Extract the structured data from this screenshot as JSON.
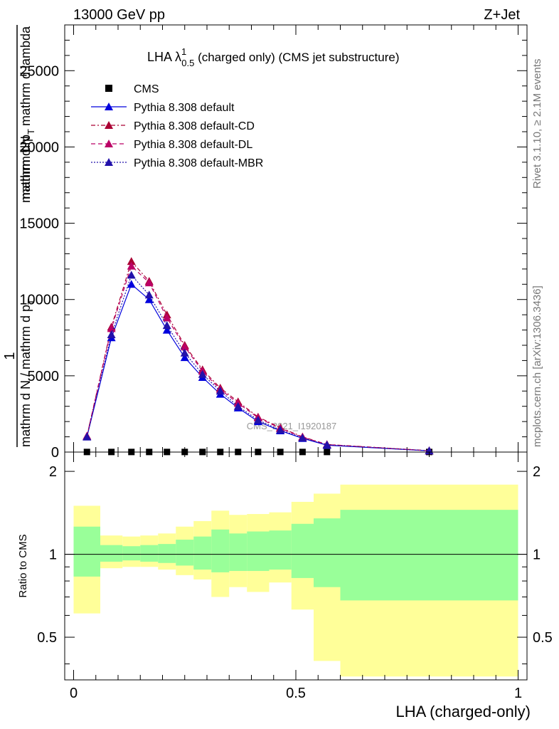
{
  "header": {
    "energy_label": "13000 GeV pp",
    "process_label": "Z+Jet"
  },
  "side_labels": {
    "rivet": "Rivet 3.1.10, ≥ 2.1M events",
    "mcplots": "mcplots.cern.ch [arXiv:1306.3436]"
  },
  "watermark": "CMS_2021_I1920187",
  "main_panel": {
    "title_lead": "LHA λ",
    "title_sup": "1",
    "title_sub": "0.5",
    "title_tail": " (charged only) (CMS jet substructure)",
    "ylabel_parts": [
      "1",
      "mathrm d N / mathrm d p",
      "T",
      "mathrm d N",
      "mathrm d p",
      "T",
      "mathrm d lambda"
    ],
    "y_tick_labels": [
      "0",
      "5000",
      "10000",
      "15000",
      "20000",
      "25000"
    ]
  },
  "ratio_panel": {
    "ylabel": "Ratio to CMS",
    "y_tick_labels": [
      "0.5",
      "1",
      "2"
    ],
    "x_tick_labels": [
      "0",
      "0.5",
      "1"
    ],
    "xlabel": "LHA (charged-only)"
  },
  "colors": {
    "cms": "#000000",
    "default": "#0000dd",
    "cd": "#aa0033",
    "dl": "#bb0066",
    "mbr": "#2211aa",
    "band_inner": "#99ff99",
    "band_outer": "#ffff99"
  },
  "chart_data": [
    {
      "type": "line",
      "panel": "main",
      "title": "LHA λ^1_0.5 (charged only) (CMS jet substructure)",
      "xlabel": "LHA (charged-only)",
      "ylabel": "1/(mathrm d N / mathrm d p_T) mathrm d^2N/(mathrm d p_T mathrm d lambda)",
      "xlim": [
        -0.02,
        1.02
      ],
      "ylim": [
        0,
        28000
      ],
      "legend_position": "top-left",
      "x": [
        0.03,
        0.085,
        0.13,
        0.17,
        0.21,
        0.25,
        0.29,
        0.33,
        0.37,
        0.415,
        0.465,
        0.515,
        0.57,
        0.8
      ],
      "series": [
        {
          "name": "CMS",
          "marker": "square",
          "values": [
            6,
            6,
            6,
            6,
            6,
            6,
            6,
            6,
            6,
            6,
            6,
            6,
            6,
            6
          ]
        },
        {
          "name": "Pythia 8.308 default",
          "marker": "triangle",
          "line": "solid",
          "values": [
            1000,
            7500,
            11000,
            10000,
            8000,
            6200,
            4900,
            3800,
            2900,
            2000,
            1400,
            900,
            450,
            80
          ]
        },
        {
          "name": "Pythia 8.308 default-CD",
          "marker": "triangle",
          "line": "dashdot",
          "values": [
            1050,
            8200,
            12500,
            11200,
            9000,
            7000,
            5400,
            4200,
            3300,
            2300,
            1600,
            1000,
            500,
            90
          ]
        },
        {
          "name": "Pythia 8.308 default-DL",
          "marker": "triangle",
          "line": "dashed",
          "values": [
            1050,
            8100,
            12200,
            11100,
            8800,
            6900,
            5300,
            4100,
            3200,
            2250,
            1550,
            980,
            490,
            88
          ]
        },
        {
          "name": "Pythia 8.308 default-MBR",
          "marker": "triangle",
          "line": "dotted",
          "values": [
            1000,
            7700,
            11600,
            10300,
            8300,
            6500,
            5100,
            4000,
            3000,
            2100,
            1450,
            930,
            470,
            85
          ]
        }
      ]
    },
    {
      "type": "area",
      "panel": "ratio",
      "ylabel": "Ratio to CMS",
      "xlabel": "LHA (charged-only)",
      "xlim": [
        -0.02,
        1.02
      ],
      "ylim": [
        0.35,
        2.35
      ],
      "y_scale": "log",
      "reference_line": 1,
      "bin_edges": [
        0.0,
        0.06,
        0.11,
        0.15,
        0.19,
        0.23,
        0.27,
        0.31,
        0.35,
        0.39,
        0.44,
        0.49,
        0.54,
        0.6,
        1.0
      ],
      "outer_band": {
        "lower": [
          0.61,
          0.89,
          0.9,
          0.9,
          0.88,
          0.84,
          0.81,
          0.7,
          0.76,
          0.73,
          0.79,
          0.63,
          0.41,
          0.36
        ],
        "upper": [
          1.5,
          1.17,
          1.16,
          1.17,
          1.19,
          1.26,
          1.32,
          1.44,
          1.39,
          1.4,
          1.42,
          1.55,
          1.66,
          1.79
        ]
      },
      "inner_band": {
        "lower": [
          0.83,
          0.94,
          0.95,
          0.94,
          0.93,
          0.91,
          0.88,
          0.86,
          0.87,
          0.87,
          0.88,
          0.82,
          0.76,
          0.68
        ],
        "upper": [
          1.26,
          1.08,
          1.07,
          1.08,
          1.09,
          1.13,
          1.16,
          1.23,
          1.19,
          1.21,
          1.22,
          1.29,
          1.35,
          1.45
        ]
      }
    }
  ]
}
